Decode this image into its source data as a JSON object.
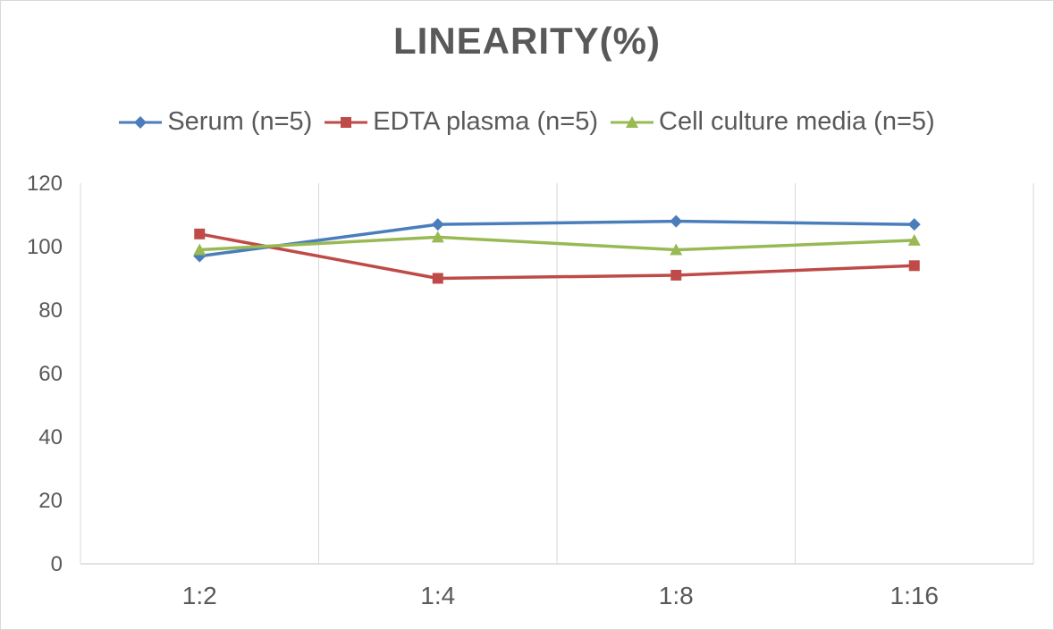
{
  "chart_data": {
    "type": "line",
    "title": "LINEARITY(%)",
    "xlabel": "",
    "ylabel": "",
    "categories": [
      "1:2",
      "1:4",
      "1:8",
      "1:16"
    ],
    "ylim": [
      0,
      120
    ],
    "yticks": [
      0,
      20,
      40,
      60,
      80,
      100,
      120
    ],
    "grid": "vertical",
    "legend_position": "top",
    "series": [
      {
        "name": "Serum (n=5)",
        "values": [
          97,
          107,
          108,
          107
        ],
        "color": "#4a7ebb",
        "marker": "diamond"
      },
      {
        "name": "EDTA plasma (n=5)",
        "values": [
          104,
          90,
          91,
          94
        ],
        "color": "#be4b48",
        "marker": "square"
      },
      {
        "name": "Cell culture media (n=5)",
        "values": [
          99,
          103,
          99,
          102
        ],
        "color": "#98b954",
        "marker": "triangle"
      }
    ]
  }
}
